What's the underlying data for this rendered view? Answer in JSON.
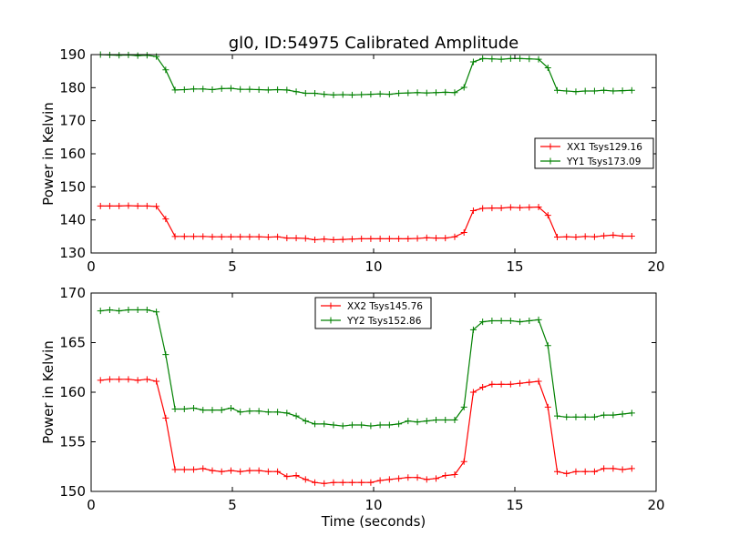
{
  "figure": {
    "title": "gl0, ID:54975 Calibrated Amplitude",
    "xlabel": "Time (seconds)"
  },
  "chart_data": [
    {
      "type": "line",
      "title": "gl0, ID:54975 Calibrated Amplitude",
      "xlabel": "",
      "ylabel": "Power in Kelvin",
      "xlim": [
        0,
        20
      ],
      "ylim": [
        130,
        190
      ],
      "xticks": [
        0,
        5,
        10,
        15,
        20
      ],
      "yticks": [
        130,
        140,
        150,
        160,
        170,
        180,
        190
      ],
      "grid": false,
      "legend_position": "center-right",
      "x": [
        0.33,
        0.66,
        0.99,
        1.32,
        1.65,
        1.98,
        2.31,
        2.64,
        2.97,
        3.3,
        3.63,
        3.96,
        4.29,
        4.62,
        4.95,
        5.28,
        5.61,
        5.94,
        6.27,
        6.6,
        6.93,
        7.26,
        7.59,
        7.92,
        8.25,
        8.58,
        8.91,
        9.24,
        9.57,
        9.9,
        10.23,
        10.56,
        10.89,
        11.22,
        11.55,
        11.88,
        12.21,
        12.54,
        12.87,
        13.2,
        13.53,
        13.86,
        14.19,
        14.52,
        14.85,
        15.18,
        15.51,
        15.84,
        16.17,
        16.5,
        16.83,
        17.16,
        17.49,
        17.82,
        18.15,
        18.48,
        18.81,
        19.14
      ],
      "series": [
        {
          "name": "XX1 Tsys129.16",
          "color": "#ff0000",
          "values": [
            144.2,
            144.2,
            144.2,
            144.3,
            144.2,
            144.2,
            144.1,
            140.3,
            135.0,
            135.0,
            135.0,
            135.0,
            134.9,
            134.9,
            134.9,
            134.9,
            134.9,
            134.9,
            134.8,
            134.9,
            134.5,
            134.5,
            134.4,
            134.0,
            134.2,
            134.0,
            134.1,
            134.2,
            134.3,
            134.3,
            134.3,
            134.3,
            134.3,
            134.3,
            134.4,
            134.6,
            134.5,
            134.5,
            134.9,
            136.2,
            142.8,
            143.5,
            143.6,
            143.6,
            143.8,
            143.7,
            143.8,
            143.9,
            141.4,
            134.8,
            134.9,
            134.8,
            135.0,
            134.9,
            135.2,
            135.4,
            135.1,
            135.1
          ]
        },
        {
          "name": "YY1 Tsys173.09",
          "color": "#008000",
          "values": [
            190.0,
            189.9,
            189.8,
            189.9,
            189.7,
            189.8,
            189.4,
            185.4,
            179.3,
            179.4,
            179.6,
            179.6,
            179.4,
            179.7,
            179.8,
            179.5,
            179.5,
            179.4,
            179.3,
            179.4,
            179.3,
            178.8,
            178.3,
            178.3,
            178.0,
            177.8,
            177.9,
            177.8,
            177.9,
            178.0,
            178.1,
            178.0,
            178.3,
            178.4,
            178.5,
            178.4,
            178.5,
            178.6,
            178.5,
            180.1,
            187.8,
            188.8,
            188.7,
            188.6,
            188.8,
            188.8,
            188.7,
            188.6,
            186.0,
            179.2,
            179.0,
            178.8,
            179.0,
            179.0,
            179.2,
            179.0,
            179.1,
            179.2
          ]
        }
      ]
    },
    {
      "type": "line",
      "title": "",
      "xlabel": "Time (seconds)",
      "ylabel": "Power in Kelvin",
      "xlim": [
        0,
        20
      ],
      "ylim": [
        150,
        170
      ],
      "xticks": [
        0,
        5,
        10,
        15,
        20
      ],
      "yticks": [
        150,
        155,
        160,
        165,
        170
      ],
      "grid": false,
      "legend_position": "top-center",
      "x": [
        0.33,
        0.66,
        0.99,
        1.32,
        1.65,
        1.98,
        2.31,
        2.64,
        2.97,
        3.3,
        3.63,
        3.96,
        4.29,
        4.62,
        4.95,
        5.28,
        5.61,
        5.94,
        6.27,
        6.6,
        6.93,
        7.26,
        7.59,
        7.92,
        8.25,
        8.58,
        8.91,
        9.24,
        9.57,
        9.9,
        10.23,
        10.56,
        10.89,
        11.22,
        11.55,
        11.88,
        12.21,
        12.54,
        12.87,
        13.2,
        13.53,
        13.86,
        14.19,
        14.52,
        14.85,
        15.18,
        15.51,
        15.84,
        16.17,
        16.5,
        16.83,
        17.16,
        17.49,
        17.82,
        18.15,
        18.48,
        18.81,
        19.14
      ],
      "series": [
        {
          "name": "XX2 Tsys145.76",
          "color": "#ff0000",
          "values": [
            161.2,
            161.3,
            161.3,
            161.3,
            161.2,
            161.3,
            161.1,
            157.4,
            152.2,
            152.2,
            152.2,
            152.3,
            152.1,
            152.0,
            152.1,
            152.0,
            152.1,
            152.1,
            152.0,
            152.0,
            151.5,
            151.6,
            151.2,
            150.9,
            150.8,
            150.9,
            150.9,
            150.9,
            150.9,
            150.9,
            151.1,
            151.2,
            151.3,
            151.4,
            151.4,
            151.2,
            151.3,
            151.6,
            151.7,
            153.0,
            160.0,
            160.5,
            160.8,
            160.8,
            160.8,
            160.9,
            161.0,
            161.1,
            158.5,
            152.0,
            151.8,
            152.0,
            152.0,
            152.0,
            152.3,
            152.3,
            152.2,
            152.3
          ]
        },
        {
          "name": "YY2 Tsys152.86",
          "color": "#008000",
          "values": [
            168.2,
            168.3,
            168.2,
            168.3,
            168.3,
            168.3,
            168.1,
            163.8,
            158.3,
            158.3,
            158.4,
            158.2,
            158.2,
            158.2,
            158.4,
            158.0,
            158.1,
            158.1,
            158.0,
            158.0,
            157.9,
            157.6,
            157.1,
            156.8,
            156.8,
            156.7,
            156.6,
            156.7,
            156.7,
            156.6,
            156.7,
            156.7,
            156.8,
            157.1,
            157.0,
            157.1,
            157.2,
            157.2,
            157.2,
            158.5,
            166.3,
            167.1,
            167.2,
            167.2,
            167.2,
            167.1,
            167.2,
            167.3,
            164.7,
            157.6,
            157.5,
            157.5,
            157.5,
            157.5,
            157.7,
            157.7,
            157.8,
            157.9
          ]
        }
      ]
    }
  ]
}
